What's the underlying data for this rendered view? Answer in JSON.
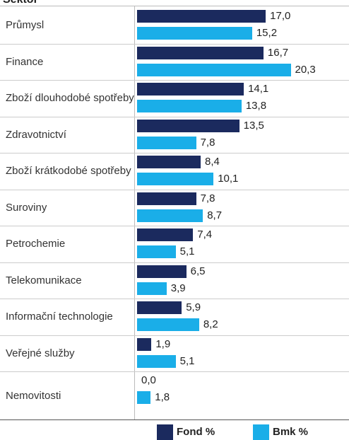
{
  "chart_data": {
    "type": "hbar",
    "title": "Sektor",
    "categories": [
      "Průmysl",
      "Finance",
      "Zboží dlouhodobé spotřeby",
      "Zdravotnictví",
      "Zboží krátkodobé spotřeby",
      "Suroviny",
      "Petrochemie",
      "Telekomunikace",
      "Informační technologie",
      "Veřejné služby",
      "Nemovitosti"
    ],
    "series": [
      {
        "name": "Fond %",
        "color": "#1b2a5e",
        "values": [
          17.0,
          16.7,
          14.1,
          13.5,
          8.4,
          7.8,
          7.4,
          6.5,
          5.9,
          1.9,
          0.0
        ],
        "value_labels": [
          "17,0",
          "16,7",
          "14,1",
          "13,5",
          "8,4",
          "7,8",
          "7,4",
          "6,5",
          "5,9",
          "1,9",
          "0,0"
        ]
      },
      {
        "name": "Bmk %",
        "color": "#1aaee8",
        "values": [
          15.2,
          20.3,
          13.8,
          7.8,
          10.1,
          8.7,
          5.1,
          3.9,
          8.2,
          5.1,
          1.8
        ],
        "value_labels": [
          "15,2",
          "20,3",
          "13,8",
          "7,8",
          "10,1",
          "8,7",
          "5,1",
          "3,9",
          "8,2",
          "5,1",
          "1,8"
        ]
      }
    ],
    "xlim": [
      0,
      28
    ],
    "legend": "bottom"
  }
}
